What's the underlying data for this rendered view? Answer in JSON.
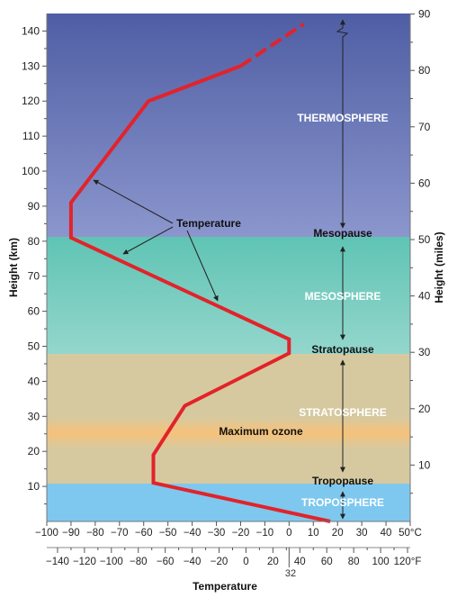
{
  "axes": {
    "y_left_label": "Height (km)",
    "y_right_label": "Height (miles)",
    "x_label": "Temperature",
    "km_ticks": [
      "10",
      "20",
      "30",
      "40",
      "50",
      "60",
      "70",
      "80",
      "90",
      "100",
      "110",
      "120",
      "130",
      "140"
    ],
    "mile_ticks": [
      "10",
      "20",
      "30",
      "40",
      "50",
      "60",
      "70",
      "80",
      "90"
    ],
    "celsius_ticks": [
      "−100",
      "−90",
      "−80",
      "−70",
      "−60",
      "−50",
      "−40",
      "−30",
      "−20",
      "−10",
      "0",
      "10",
      "20",
      "30",
      "40",
      "50°C"
    ],
    "fahrenheit_ticks": [
      "−140",
      "−120",
      "−100",
      "−80",
      "−60",
      "−40",
      "−20",
      "0",
      "20",
      "40",
      "60",
      "80",
      "100",
      "120°F"
    ],
    "freezing_label": "32"
  },
  "layers": {
    "thermosphere": "THERMOSPHERE",
    "mesopause": "Mesopause",
    "mesosphere": "MESOSPHERE",
    "stratopause": "Stratopause",
    "stratosphere": "STRATOSPHERE",
    "ozone": "Maximum ozone",
    "tropopause": "Tropopause",
    "troposphere": "TROPOSPHERE"
  },
  "temperature_label": "Temperature",
  "colors": {
    "thermosphere_top": "#4f5ea4",
    "thermosphere_bottom": "#8b96cd",
    "mesosphere_top": "#5fc4b4",
    "mesosphere_bottom": "#94d6cc",
    "stratosphere": "#d6c9a0",
    "ozone": "#f6c27a",
    "troposphere": "#7ec8ef",
    "curve": "#e2232a"
  },
  "chart_data": {
    "type": "line",
    "series": [
      {
        "name": "Temperature",
        "points": [
          {
            "temp_c": 17,
            "km": 0
          },
          {
            "temp_c": -56,
            "km": 11
          },
          {
            "temp_c": -56,
            "km": 19
          },
          {
            "temp_c": -43,
            "km": 33
          },
          {
            "temp_c": 0,
            "km": 48
          },
          {
            "temp_c": 0,
            "km": 52
          },
          {
            "temp_c": -90,
            "km": 81
          },
          {
            "temp_c": -90,
            "km": 91
          },
          {
            "temp_c": -58,
            "km": 120
          },
          {
            "temp_c": -20,
            "km": 130
          },
          {
            "temp_c": 6,
            "km": 142
          }
        ],
        "dashed_from_km": 130
      }
    ],
    "x_range_celsius": [
      -100,
      50
    ],
    "y_range_km": [
      0,
      145
    ],
    "layer_boundaries_km": {
      "tropopause": 11,
      "stratopause": 48,
      "mesopause": 81
    },
    "ozone_band_km": [
      21,
      29
    ]
  }
}
